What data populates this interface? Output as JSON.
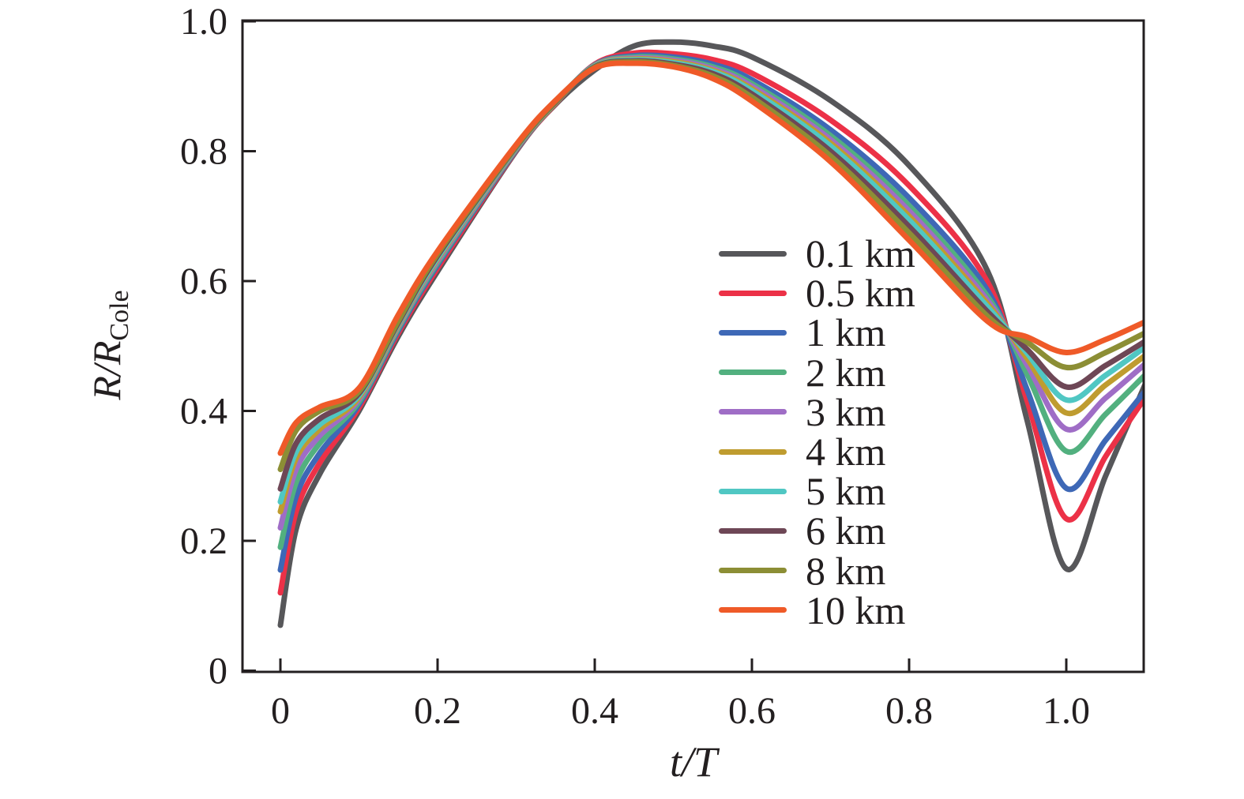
{
  "chart_data": {
    "type": "line",
    "title": "",
    "xlabel": "t/T",
    "ylabel": "R/R_Cole",
    "ylabel_main": "R/R",
    "ylabel_sub": "Cole",
    "xlim": [
      -0.048,
      1.099
    ],
    "ylim": [
      0,
      1.0
    ],
    "grid": false,
    "legend_position": "center-right",
    "x_ticks": {
      "values": [
        0,
        0.2,
        0.4,
        0.6,
        0.8,
        1.0
      ],
      "labels": [
        "0",
        "0.2",
        "0.4",
        "0.6",
        "0.8",
        "1.0"
      ]
    },
    "y_ticks": {
      "values": [
        0,
        0.2,
        0.4,
        0.6,
        0.8,
        1.0
      ],
      "labels": [
        "0",
        "0.2",
        "0.4",
        "0.6",
        "0.8",
        "1.0"
      ]
    },
    "x": [
      0,
      0.02,
      0.05,
      0.1,
      0.15,
      0.2,
      0.3,
      0.35,
      0.4,
      0.45,
      0.5,
      0.55,
      0.6,
      0.7,
      0.8,
      0.9,
      0.95,
      1.0,
      1.05,
      1.1
    ],
    "series": [
      {
        "name": "0.1 km",
        "color": "#57575a",
        "values": [
          0.07,
          0.218,
          0.303,
          0.4,
          0.515,
          0.615,
          0.8,
          0.872,
          0.925,
          0.962,
          0.968,
          0.962,
          0.945,
          0.878,
          0.778,
          0.615,
          0.386,
          0.157,
          0.3,
          0.44
        ]
      },
      {
        "name": "0.5 km",
        "color": "#ec3147",
        "values": [
          0.12,
          0.245,
          0.32,
          0.405,
          0.52,
          0.62,
          0.801,
          0.873,
          0.934,
          0.951,
          0.95,
          0.941,
          0.92,
          0.848,
          0.747,
          0.598,
          0.416,
          0.234,
          0.33,
          0.42
        ]
      },
      {
        "name": "1 km",
        "color": "#3e68b6",
        "values": [
          0.155,
          0.268,
          0.335,
          0.41,
          0.524,
          0.625,
          0.802,
          0.874,
          0.933,
          0.947,
          0.945,
          0.934,
          0.91,
          0.833,
          0.728,
          0.585,
          0.433,
          0.281,
          0.355,
          0.43
        ]
      },
      {
        "name": "2 km",
        "color": "#52b07f",
        "values": [
          0.19,
          0.29,
          0.35,
          0.414,
          0.527,
          0.628,
          0.803,
          0.874,
          0.9325,
          0.945,
          0.942,
          0.93,
          0.904,
          0.824,
          0.716,
          0.576,
          0.457,
          0.338,
          0.395,
          0.455
        ]
      },
      {
        "name": "3 km",
        "color": "#9f6dc6",
        "values": [
          0.22,
          0.31,
          0.362,
          0.418,
          0.53,
          0.631,
          0.804,
          0.875,
          0.932,
          0.9435,
          0.94,
          0.927,
          0.9,
          0.818,
          0.708,
          0.57,
          0.471,
          0.372,
          0.42,
          0.472
        ]
      },
      {
        "name": "4 km",
        "color": "#bf9c2f",
        "values": [
          0.245,
          0.327,
          0.372,
          0.421,
          0.532,
          0.634,
          0.805,
          0.875,
          0.9315,
          0.942,
          0.938,
          0.9245,
          0.896,
          0.8125,
          0.7,
          0.5645,
          0.481,
          0.397,
          0.44,
          0.485
        ]
      },
      {
        "name": "5 km",
        "color": "#50c7c3",
        "values": [
          0.26,
          0.337,
          0.379,
          0.424,
          0.534,
          0.636,
          0.806,
          0.876,
          0.931,
          0.9405,
          0.936,
          0.9225,
          0.893,
          0.808,
          0.694,
          0.56,
          0.489,
          0.417,
          0.455,
          0.498
        ]
      },
      {
        "name": "6 km",
        "color": "#6e4756",
        "values": [
          0.28,
          0.35,
          0.388,
          0.427,
          0.536,
          0.639,
          0.807,
          0.876,
          0.93,
          0.939,
          0.934,
          0.9195,
          0.888,
          0.8,
          0.684,
          0.5525,
          0.495,
          0.437,
          0.47,
          0.507
        ]
      },
      {
        "name": "8 km",
        "color": "#8c8e35",
        "values": [
          0.31,
          0.37,
          0.4,
          0.43,
          0.539,
          0.642,
          0.808,
          0.877,
          0.929,
          0.9375,
          0.932,
          0.916,
          0.883,
          0.7925,
          0.674,
          0.5455,
          0.506,
          0.467,
          0.49,
          0.52
        ]
      },
      {
        "name": "10 km",
        "color": "#ef5a28",
        "values": [
          0.335,
          0.382,
          0.406,
          0.435,
          0.548,
          0.646,
          0.81,
          0.878,
          0.928,
          0.9355,
          0.93,
          0.912,
          0.877,
          0.784,
          0.663,
          0.538,
          0.514,
          0.49,
          0.51,
          0.537
        ]
      }
    ],
    "axis_color": "#231f20",
    "line_width": 7
  }
}
